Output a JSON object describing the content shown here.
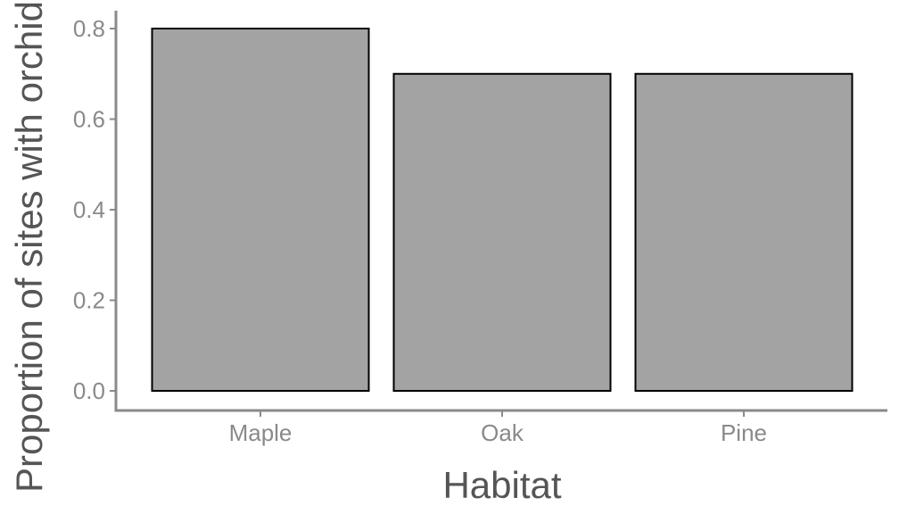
{
  "chart_data": {
    "type": "bar",
    "categories": [
      "Maple",
      "Oak",
      "Pine"
    ],
    "values": [
      0.8,
      0.7,
      0.7
    ],
    "xlabel": "Habitat",
    "ylabel": "Proportion of sites with orchids",
    "ylim": [
      0,
      0.8
    ],
    "yticks": [
      "0.0",
      "0.2",
      "0.4",
      "0.6",
      "0.8"
    ],
    "bar_color": "#a3a3a3",
    "bar_outline": "#000000",
    "axis_color": "#8a8a8a",
    "grid": false,
    "legend": "none"
  }
}
